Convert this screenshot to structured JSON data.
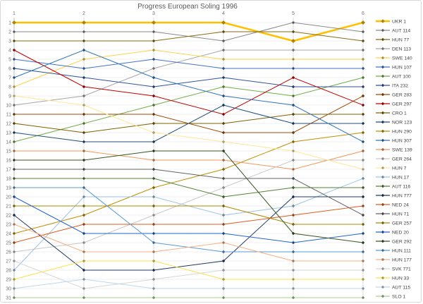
{
  "title": "Progress European Soling 1996",
  "x_axis": {
    "position": "top",
    "tick_labels": [
      "1",
      "2",
      "3",
      "4",
      "5",
      "6"
    ]
  },
  "y_axis": {
    "tick_labels": [
      "1",
      "2",
      "3",
      "4",
      "5",
      "6",
      "7",
      "8",
      "9",
      "10",
      "11",
      "12",
      "13",
      "14",
      "15",
      "16",
      "17",
      "18",
      "19",
      "20",
      "21",
      "22",
      "23",
      "24",
      "25",
      "26",
      "27",
      "28",
      "29",
      "30",
      "31"
    ]
  },
  "legend": {
    "position": "right"
  },
  "colors": {
    "grid_minor": "#efefef",
    "grid_major": "#d9d9d9",
    "axis": "#bfbfbf",
    "tick_text": "#737373",
    "legend_text": "#3f3f3f",
    "title_text": "#595959",
    "border": "#d8d8d8"
  },
  "chart_data": {
    "type": "line",
    "subtype": "bump-rank-chart",
    "title": "Progress European Soling 1996",
    "x": [
      1,
      2,
      3,
      4,
      5,
      6
    ],
    "x_label_position": "top",
    "ylabel": "",
    "xlabel": "",
    "ylim": [
      1,
      31
    ],
    "y_inverted_ranks": true,
    "grid": true,
    "legend_position": "right",
    "series": [
      {
        "name": "UKR 1",
        "color": "#FFC000",
        "emphasis": true,
        "ranks": [
          1,
          1,
          1,
          1,
          3,
          1
        ]
      },
      {
        "name": "AUT 114",
        "color": "#898989",
        "emphasis": false,
        "ranks": [
          2,
          2,
          2,
          3,
          1,
          2
        ]
      },
      {
        "name": "HUN 77",
        "color": "#8A6A15",
        "emphasis": false,
        "ranks": [
          3,
          3,
          3,
          2,
          2,
          3
        ]
      },
      {
        "name": "DEN 113",
        "color": "#A6A6A6",
        "emphasis": false,
        "ranks": [
          10,
          9,
          6,
          4,
          4,
          4
        ]
      },
      {
        "name": "SWE 140",
        "color": "#FFD24D",
        "emphasis": false,
        "ranks": [
          8,
          5,
          4,
          5,
          5,
          5
        ]
      },
      {
        "name": "HUN 107",
        "color": "#4472C4",
        "emphasis": false,
        "ranks": [
          5,
          6,
          5,
          6,
          6,
          6
        ]
      },
      {
        "name": "AUT 100",
        "color": "#70AD47",
        "emphasis": false,
        "ranks": [
          14,
          12,
          10,
          8,
          9,
          7
        ]
      },
      {
        "name": "ITA 232",
        "color": "#2F5597",
        "emphasis": false,
        "ranks": [
          6,
          7,
          8,
          7,
          8,
          8
        ]
      },
      {
        "name": "GER 283",
        "color": "#9E4A06",
        "emphasis": false,
        "ranks": [
          11,
          11,
          11,
          13,
          13,
          9
        ]
      },
      {
        "name": "GER 297",
        "color": "#C00000",
        "emphasis": false,
        "ranks": [
          4,
          8,
          9,
          11,
          7,
          10
        ]
      },
      {
        "name": "CRO 1",
        "color": "#7F6000",
        "emphasis": false,
        "ranks": [
          12,
          13,
          12,
          12,
          11,
          11
        ]
      },
      {
        "name": "NOR 123",
        "color": "#1F4E79",
        "emphasis": false,
        "ranks": [
          13,
          14,
          14,
          10,
          12,
          12
        ]
      },
      {
        "name": "HUN 290",
        "color": "#BF8F00",
        "emphasis": false,
        "ranks": [
          24,
          22,
          19,
          17,
          14,
          13
        ]
      },
      {
        "name": "HUN 307",
        "color": "#2E75B6",
        "emphasis": false,
        "ranks": [
          7,
          4,
          7,
          9,
          10,
          14
        ]
      },
      {
        "name": "SWE 139",
        "color": "#F1975A",
        "emphasis": false,
        "ranks": [
          15,
          15,
          16,
          16,
          17,
          15
        ]
      },
      {
        "name": "GER 264",
        "color": "#C9C9C9",
        "emphasis": false,
        "ranks": [
          26,
          25,
          22,
          19,
          16,
          16
        ]
      },
      {
        "name": "HUN 7",
        "color": "#FFE699",
        "emphasis": false,
        "ranks": [
          9,
          10,
          13,
          14,
          15,
          17
        ]
      },
      {
        "name": "HUN 17",
        "color": "#9DC3E6",
        "emphasis": false,
        "ranks": [
          28,
          20,
          20,
          22,
          21,
          18
        ]
      },
      {
        "name": "AUT 116",
        "color": "#548235",
        "emphasis": false,
        "ranks": [
          18,
          18,
          18,
          20,
          19,
          19
        ]
      },
      {
        "name": "HUN 777",
        "color": "#203864",
        "emphasis": false,
        "ranks": [
          22,
          28,
          28,
          27,
          20,
          20
        ]
      },
      {
        "name": "NED 24",
        "color": "#D95E1E",
        "emphasis": false,
        "ranks": [
          25,
          23,
          23,
          23,
          22,
          21
        ]
      },
      {
        "name": "HUN 71",
        "color": "#636363",
        "emphasis": false,
        "ranks": [
          17,
          17,
          17,
          18,
          18,
          22
        ]
      },
      {
        "name": "GER 257",
        "color": "#AD8B00",
        "emphasis": false,
        "ranks": [
          21,
          21,
          21,
          21,
          23,
          23
        ]
      },
      {
        "name": "NED 20",
        "color": "#2563C9",
        "emphasis": false,
        "ranks": [
          20,
          24,
          24,
          24,
          25,
          24
        ]
      },
      {
        "name": "GER 292",
        "color": "#375623",
        "emphasis": false,
        "ranks": [
          16,
          16,
          15,
          15,
          24,
          25
        ]
      },
      {
        "name": "HUN 111",
        "color": "#5B9BD5",
        "emphasis": false,
        "ranks": [
          19,
          19,
          25,
          26,
          26,
          26
        ]
      },
      {
        "name": "HUN 177",
        "color": "#F4B183",
        "emphasis": false,
        "ranks": [
          23,
          26,
          26,
          25,
          27,
          27
        ]
      },
      {
        "name": "SVK 771",
        "color": "#D6D6D6",
        "emphasis": false,
        "ranks": [
          27,
          30,
          29,
          28,
          28,
          28
        ]
      },
      {
        "name": "HUN 33",
        "color": "#FFE04D",
        "emphasis": false,
        "ranks": [
          29,
          27,
          27,
          29,
          29,
          29
        ]
      },
      {
        "name": "AUT 115",
        "color": "#BDD7EE",
        "emphasis": false,
        "ranks": [
          30,
          29,
          30,
          30,
          30,
          30
        ]
      },
      {
        "name": "SLO 1",
        "color": "#A9D18E",
        "emphasis": false,
        "ranks": [
          31,
          31,
          31,
          31,
          31,
          31
        ]
      }
    ]
  }
}
